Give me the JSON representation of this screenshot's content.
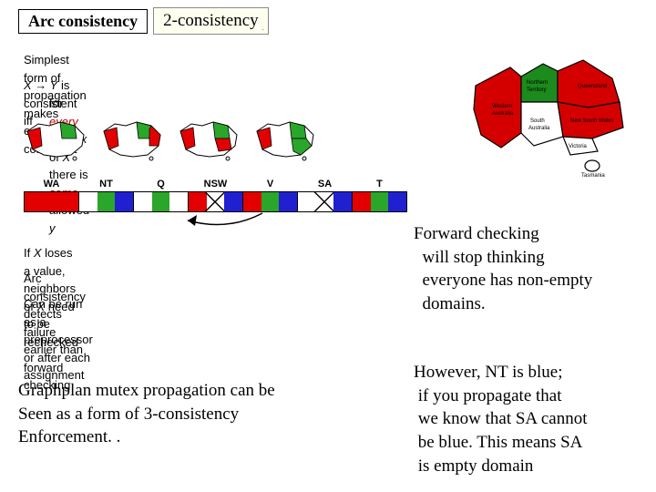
{
  "title": "Arc consistency",
  "callout": "2-consistency",
  "notes": {
    "line1_a": "Simplest form of propagation makes each ",
    "line1_b": "arc",
    "line1_c": " consistent",
    "line2_a": "X → Y",
    "line2_b": " is consistent iff",
    "line3_a": "for ",
    "line3_every": "every",
    "line3_b": " value ",
    "line3_c": "x",
    "line3_d": " of ",
    "line3_e": "X",
    "line3_f": " there is ",
    "line3_some": "some",
    "line3_g": " allowed ",
    "line3_h": "y",
    "line4_a": "If ",
    "line4_b": "X",
    "line4_c": " loses a value, neighbors of ",
    "line4_d": "X",
    "line4_e": " need to be rechecked",
    "line5": "Arc consistency detects failure earlier than forward checking",
    "line6": "Can be run as a preprocessor or after each assignment"
  },
  "states": [
    "WA",
    "NT",
    "Q",
    "NSW",
    "V",
    "SA",
    "T"
  ],
  "colors": {
    "red": "#e20000",
    "green": "#2aa62a",
    "blue": "#2020d0",
    "white": "#ffffff",
    "mapfill_red": "#e20000",
    "mapfill_green": "#2aa62a",
    "mapfill_white": "#ffffff",
    "ocean": "#ffffff",
    "map_outline": "#000000",
    "big_green": "#1c8a1c",
    "big_red": "#d40000"
  },
  "domain_rows": [
    [
      {
        "swatches": [
          {
            "c": "#e20000"
          }
        ]
      },
      {
        "swatches": [
          {
            "c": "#ffffff"
          },
          {
            "c": "#2aa62a"
          },
          {
            "c": "#2020d0"
          }
        ]
      },
      {
        "swatches": [
          {
            "c": "#ffffff"
          },
          {
            "c": "#2aa62a"
          },
          {
            "c": "#ffffff"
          }
        ]
      },
      {
        "swatches": [
          {
            "c": "#e20000"
          },
          {
            "c": "#ffffff",
            "x": true
          },
          {
            "c": "#2020d0"
          }
        ]
      },
      {
        "swatches": [
          {
            "c": "#e20000"
          },
          {
            "c": "#2aa62a"
          },
          {
            "c": "#2020d0"
          }
        ]
      },
      {
        "swatches": [
          {
            "c": "#ffffff"
          },
          {
            "c": "#ffffff",
            "x": true
          },
          {
            "c": "#2020d0"
          }
        ]
      },
      {
        "swatches": [
          {
            "c": "#e20000"
          },
          {
            "c": "#2aa62a"
          },
          {
            "c": "#2020d0"
          }
        ]
      }
    ]
  ],
  "fc_text": {
    "l1": "Forward checking",
    "l2": "  will stop thinking",
    "l3": "  everyone has non-empty",
    "l4": "  domains."
  },
  "bottom_left": {
    "l1": "Graphplan mutex propagation can be",
    "l2": "Seen as a form of 3-consistency",
    "l3": "Enforcement. ."
  },
  "bottom_right": {
    "l1": "However, NT is blue;",
    "l2": " if you propagate that",
    "l3": " we know that SA cannot",
    "l4": " be blue. This means SA",
    "l5": " is empty domain"
  },
  "big_map_regions": {
    "WA": {
      "label": "Western Australia"
    },
    "NT": {
      "label": "Northern Territory"
    },
    "Q": {
      "label": "Queensland"
    },
    "SA": {
      "label": "South Australia"
    },
    "NSW": {
      "label": "New South Wales"
    },
    "V": {
      "label": "Victoria"
    },
    "T": {
      "label": "Tasmania"
    }
  }
}
